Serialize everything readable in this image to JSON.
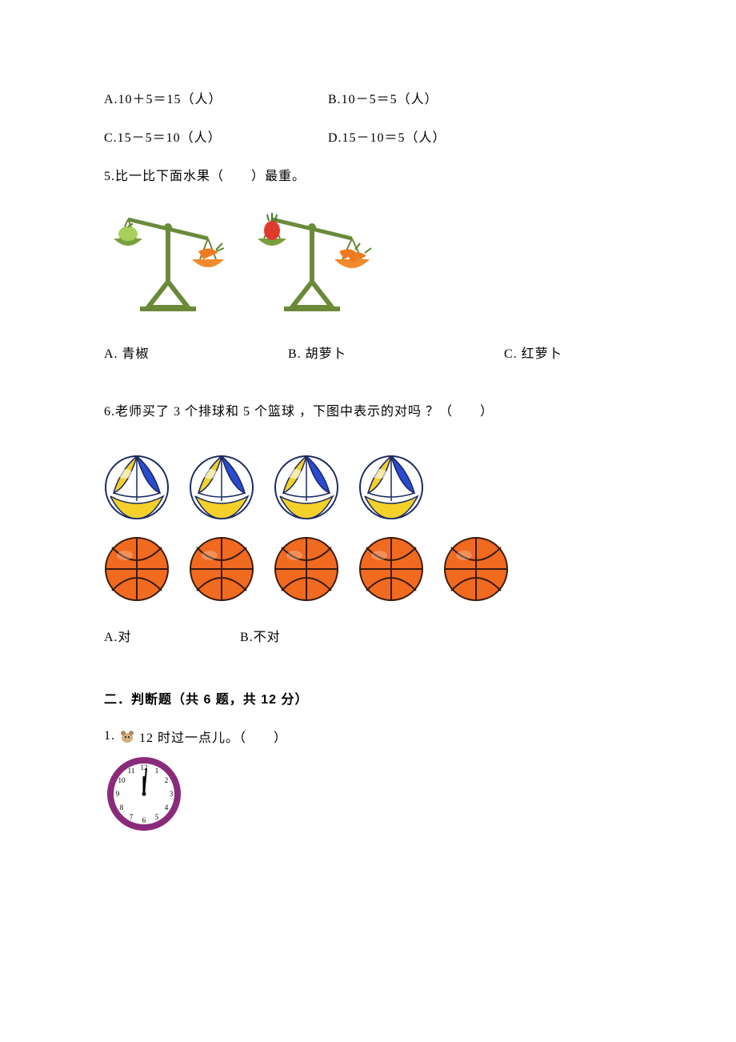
{
  "colors": {
    "text": "#000000",
    "bg": "#ffffff",
    "scaleStand": "#6a8a3a",
    "scalePanGreen": "#7aa03d",
    "scalePanOrange": "#f08a2a",
    "pepper": "#a7d05a",
    "carrot": "#f07a20",
    "carrotLeaf": "#5a8a2a",
    "radish": "#e03a2a",
    "radishLeaf": "#4a7a2a",
    "volleyYellow": "#f3d02a",
    "volleyBlue": "#2a4ad0",
    "volleyWhite": "#ffffff",
    "volleyStroke": "#1a2a60",
    "basketOrange": "#f06a20",
    "basketStroke": "#3a1a0a",
    "clockRing": "#8a2a7a",
    "clockFace": "#ffffff",
    "clockHand": "#000000",
    "hamsterBody": "#d0b080",
    "hamsterEar": "#b08a5a"
  },
  "q4": {
    "optA": "A.10＋5＝15（人）",
    "optB": "B.10－5＝5（人）",
    "optC": "C.15－5＝10（人）",
    "optD": "D.15－10＝5（人）"
  },
  "q5": {
    "text": "5.比一比下面水果（　　）最重。",
    "optA": "A.  青椒",
    "optB": "B.  胡萝卜",
    "optC": "C.  红萝卜",
    "scales": [
      {
        "leftItem": "pepper",
        "rightItem": "carrot",
        "tilt": "right"
      },
      {
        "leftItem": "radish",
        "rightItem": "carrots2",
        "tilt": "right"
      }
    ]
  },
  "q6": {
    "text": "6.老师买了 3 个排球和 5 个篮球 ，下图中表示的对吗 ？（　　）",
    "volleyballCount": 4,
    "basketballCount": 5,
    "optA": "A.对",
    "optB": "B.不对"
  },
  "section2": {
    "title": "二．判断题（共 6 题，共 12 分）",
    "q1": {
      "prefix": "1.",
      "text": "12 时过一点儿。（　　）",
      "clock": {
        "hour": 12,
        "minute": 2
      }
    }
  }
}
